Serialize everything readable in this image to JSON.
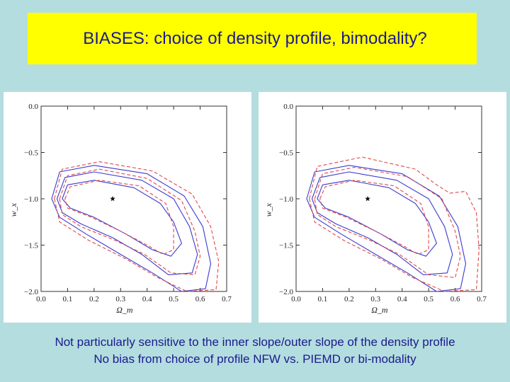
{
  "title": "BIASES: choice of density profile, bimodality?",
  "captions": [
    "Not particularly sensitive to the inner slope/outer slope of the density profile",
    "No bias  from choice of profile NFW vs. PIEMD or bi-modality"
  ],
  "colors": {
    "background": "#b4dde0",
    "title_box": "#ffff00",
    "text": "#1a1a8c",
    "solid_contours": "#3a3ad0",
    "dashed_contours": "#e04848"
  },
  "chart_data": [
    {
      "type": "contour",
      "xlabel": "Ω_m",
      "ylabel": "w_x",
      "xlim": [
        0.0,
        0.7
      ],
      "ylim": [
        -2.0,
        0.0
      ],
      "xticks": [
        "0.0",
        "0.1",
        "0.2",
        "0.3",
        "0.4",
        "0.5",
        "0.6",
        "0.7"
      ],
      "yticks": [
        "0.0",
        "−0.5",
        "−1.0",
        "−1.5",
        "−2.0"
      ],
      "star": {
        "x": 0.27,
        "y": -1.0
      },
      "series": [
        {
          "style": "solid",
          "contours": [
            [
              [
                0.08,
                -1.0
              ],
              [
                0.1,
                -0.85
              ],
              [
                0.2,
                -0.8
              ],
              [
                0.35,
                -0.88
              ],
              [
                0.45,
                -1.05
              ],
              [
                0.5,
                -1.25
              ],
              [
                0.53,
                -1.48
              ],
              [
                0.49,
                -1.62
              ],
              [
                0.42,
                -1.55
              ],
              [
                0.32,
                -1.38
              ],
              [
                0.2,
                -1.2
              ],
              [
                0.11,
                -1.1
              ],
              [
                0.08,
                -1.0
              ]
            ],
            [
              [
                0.06,
                -1.0
              ],
              [
                0.09,
                -0.77
              ],
              [
                0.2,
                -0.71
              ],
              [
                0.38,
                -0.8
              ],
              [
                0.5,
                -1.0
              ],
              [
                0.56,
                -1.3
              ],
              [
                0.59,
                -1.6
              ],
              [
                0.57,
                -1.8
              ],
              [
                0.48,
                -1.82
              ],
              [
                0.38,
                -1.6
              ],
              [
                0.27,
                -1.42
              ],
              [
                0.15,
                -1.27
              ],
              [
                0.08,
                -1.15
              ],
              [
                0.06,
                -1.0
              ]
            ],
            [
              [
                0.04,
                -1.0
              ],
              [
                0.07,
                -0.71
              ],
              [
                0.2,
                -0.64
              ],
              [
                0.4,
                -0.73
              ],
              [
                0.54,
                -0.97
              ],
              [
                0.61,
                -1.3
              ],
              [
                0.64,
                -1.7
              ],
              [
                0.62,
                -1.97
              ],
              [
                0.53,
                -2.0
              ],
              [
                0.42,
                -1.8
              ],
              [
                0.3,
                -1.6
              ],
              [
                0.17,
                -1.38
              ],
              [
                0.07,
                -1.2
              ],
              [
                0.04,
                -1.0
              ]
            ]
          ]
        },
        {
          "style": "dashed",
          "contours": [
            [
              [
                0.09,
                -1.0
              ],
              [
                0.11,
                -0.87
              ],
              [
                0.22,
                -0.8
              ],
              [
                0.37,
                -0.86
              ],
              [
                0.47,
                -1.05
              ],
              [
                0.5,
                -1.3
              ],
              [
                0.5,
                -1.55
              ],
              [
                0.46,
                -1.6
              ],
              [
                0.4,
                -1.5
              ],
              [
                0.3,
                -1.35
              ],
              [
                0.19,
                -1.2
              ],
              [
                0.1,
                -1.1
              ],
              [
                0.09,
                -1.0
              ]
            ],
            [
              [
                0.07,
                -1.0
              ],
              [
                0.1,
                -0.75
              ],
              [
                0.22,
                -0.68
              ],
              [
                0.4,
                -0.78
              ],
              [
                0.53,
                -1.02
              ],
              [
                0.58,
                -1.35
              ],
              [
                0.6,
                -1.62
              ],
              [
                0.58,
                -1.82
              ],
              [
                0.49,
                -1.8
              ],
              [
                0.39,
                -1.6
              ],
              [
                0.28,
                -1.45
              ],
              [
                0.15,
                -1.3
              ],
              [
                0.08,
                -1.17
              ],
              [
                0.07,
                -1.0
              ]
            ],
            [
              [
                0.05,
                -1.0
              ],
              [
                0.08,
                -0.68
              ],
              [
                0.22,
                -0.6
              ],
              [
                0.42,
                -0.7
              ],
              [
                0.57,
                -0.95
              ],
              [
                0.64,
                -1.3
              ],
              [
                0.67,
                -1.68
              ],
              [
                0.66,
                -1.98
              ],
              [
                0.55,
                -2.0
              ],
              [
                0.44,
                -1.85
              ],
              [
                0.32,
                -1.65
              ],
              [
                0.18,
                -1.45
              ],
              [
                0.07,
                -1.25
              ],
              [
                0.05,
                -1.0
              ]
            ]
          ]
        }
      ]
    },
    {
      "type": "contour",
      "xlabel": "Ω_m",
      "ylabel": "w_x",
      "xlim": [
        0.0,
        0.7
      ],
      "ylim": [
        -2.0,
        0.0
      ],
      "xticks": [
        "0.0",
        "0.1",
        "0.2",
        "0.3",
        "0.4",
        "0.5",
        "0.6",
        "0.7"
      ],
      "yticks": [
        "0.0",
        "−0.5",
        "−1.0",
        "−1.5",
        "−2.0"
      ],
      "star": {
        "x": 0.27,
        "y": -1.0
      },
      "series": [
        {
          "style": "solid",
          "contours": [
            [
              [
                0.08,
                -1.0
              ],
              [
                0.1,
                -0.85
              ],
              [
                0.2,
                -0.8
              ],
              [
                0.35,
                -0.88
              ],
              [
                0.45,
                -1.05
              ],
              [
                0.5,
                -1.25
              ],
              [
                0.53,
                -1.48
              ],
              [
                0.49,
                -1.62
              ],
              [
                0.42,
                -1.55
              ],
              [
                0.32,
                -1.38
              ],
              [
                0.2,
                -1.2
              ],
              [
                0.11,
                -1.1
              ],
              [
                0.08,
                -1.0
              ]
            ],
            [
              [
                0.06,
                -1.0
              ],
              [
                0.09,
                -0.77
              ],
              [
                0.2,
                -0.71
              ],
              [
                0.38,
                -0.8
              ],
              [
                0.5,
                -1.0
              ],
              [
                0.56,
                -1.3
              ],
              [
                0.59,
                -1.6
              ],
              [
                0.57,
                -1.8
              ],
              [
                0.48,
                -1.82
              ],
              [
                0.38,
                -1.6
              ],
              [
                0.27,
                -1.42
              ],
              [
                0.15,
                -1.27
              ],
              [
                0.08,
                -1.15
              ],
              [
                0.06,
                -1.0
              ]
            ],
            [
              [
                0.04,
                -1.0
              ],
              [
                0.07,
                -0.71
              ],
              [
                0.2,
                -0.64
              ],
              [
                0.4,
                -0.73
              ],
              [
                0.54,
                -0.97
              ],
              [
                0.61,
                -1.3
              ],
              [
                0.64,
                -1.7
              ],
              [
                0.62,
                -1.97
              ],
              [
                0.53,
                -2.0
              ],
              [
                0.42,
                -1.8
              ],
              [
                0.3,
                -1.6
              ],
              [
                0.17,
                -1.38
              ],
              [
                0.07,
                -1.2
              ],
              [
                0.04,
                -1.0
              ]
            ]
          ]
        },
        {
          "style": "dashed",
          "contours": [
            [
              [
                0.09,
                -1.0
              ],
              [
                0.11,
                -0.87
              ],
              [
                0.22,
                -0.8
              ],
              [
                0.37,
                -0.86
              ],
              [
                0.47,
                -1.05
              ],
              [
                0.5,
                -1.3
              ],
              [
                0.5,
                -1.55
              ],
              [
                0.46,
                -1.6
              ],
              [
                0.4,
                -1.5
              ],
              [
                0.3,
                -1.35
              ],
              [
                0.19,
                -1.2
              ],
              [
                0.1,
                -1.1
              ],
              [
                0.09,
                -1.0
              ]
            ],
            [
              [
                0.07,
                -1.0
              ],
              [
                0.1,
                -0.73
              ],
              [
                0.22,
                -0.66
              ],
              [
                0.42,
                -0.76
              ],
              [
                0.55,
                -1.0
              ],
              [
                0.6,
                -1.35
              ],
              [
                0.62,
                -1.62
              ],
              [
                0.6,
                -1.85
              ],
              [
                0.5,
                -1.82
              ],
              [
                0.39,
                -1.6
              ],
              [
                0.28,
                -1.45
              ],
              [
                0.15,
                -1.3
              ],
              [
                0.08,
                -1.17
              ],
              [
                0.07,
                -1.0
              ]
            ],
            [
              [
                0.05,
                -1.0
              ],
              [
                0.08,
                -0.65
              ],
              [
                0.25,
                -0.55
              ],
              [
                0.45,
                -0.68
              ],
              [
                0.53,
                -0.85
              ],
              [
                0.58,
                -0.94
              ],
              [
                0.64,
                -0.92
              ],
              [
                0.68,
                -1.15
              ],
              [
                0.69,
                -1.55
              ],
              [
                0.68,
                -1.98
              ],
              [
                0.56,
                -2.0
              ],
              [
                0.44,
                -1.85
              ],
              [
                0.32,
                -1.65
              ],
              [
                0.18,
                -1.45
              ],
              [
                0.07,
                -1.25
              ],
              [
                0.05,
                -1.0
              ]
            ]
          ]
        }
      ]
    }
  ]
}
